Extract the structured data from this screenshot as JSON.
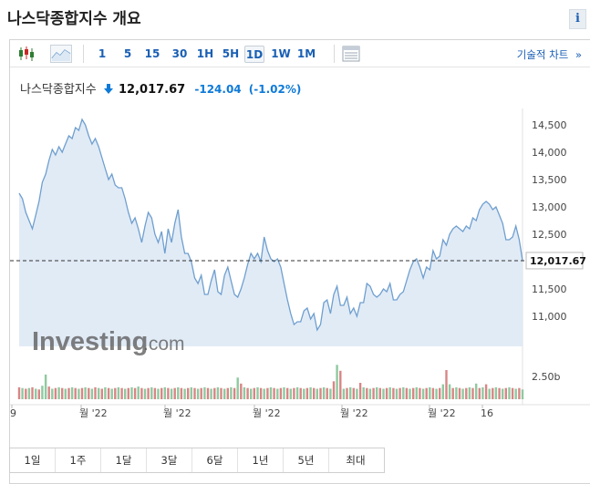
{
  "header": {
    "title": "나스닥종합지수 개요",
    "info_label": "i"
  },
  "toolbar": {
    "chart_types": [
      "candlestick-icon",
      "area-chart-icon"
    ],
    "periods": [
      "1",
      "5",
      "15",
      "30",
      "1H",
      "5H",
      "1D",
      "1W",
      "1M"
    ],
    "active_period": "1D",
    "table_icon": "table-icon",
    "technical_label": "기술적 차트",
    "technical_suffix": "»"
  },
  "quote": {
    "name": "나스닥종합지수",
    "direction_icon": "down-arrow-icon",
    "price": "12,017.67",
    "change": "-124.04",
    "change_pct": "(-1.02%)"
  },
  "colors": {
    "accent": "#1a5fb4",
    "down": "#0e7ad8",
    "area_fill": "#dce8f4",
    "line": "#6f9fcf",
    "vol_up": "#8fc9a0",
    "vol_down": "#d98585"
  },
  "watermark": {
    "brand": "Investing",
    "suffix": ".com"
  },
  "range_buttons": [
    "1일",
    "1주",
    "1달",
    "3달",
    "6달",
    "1년",
    "5년",
    "최대"
  ],
  "chart_data": {
    "type": "area",
    "title": "",
    "xlabel": "",
    "ylabel": "",
    "ylim": [
      10450,
      14800
    ],
    "y_ticks": [
      "14,500",
      "14,000",
      "13,500",
      "13,000",
      "12,500",
      "12,000",
      "11,500",
      "11,000"
    ],
    "x_tick_labels": [
      "9",
      "월 '22",
      "월 '22",
      "월 '22",
      "월 '22",
      "월 '22",
      "16"
    ],
    "current_label": "12,017.67",
    "current_value": 12017.67,
    "volume_tick": "2.50b",
    "grid": false,
    "series": [
      {
        "values": [
          13250,
          13150,
          12900,
          12750,
          12600,
          12850,
          13100,
          13450,
          13600,
          13850,
          14050,
          13950,
          14100,
          14000,
          14150,
          14300,
          14250,
          14450,
          14400,
          14600,
          14500,
          14300,
          14150,
          14250,
          14100,
          13900,
          13700,
          13500,
          13600,
          13400,
          13350,
          13350,
          13150,
          12900,
          12700,
          12800,
          12600,
          12350,
          12650,
          12900,
          12800,
          12500,
          12350,
          12550,
          12150,
          12600,
          12350,
          12700,
          12950,
          12450,
          12150,
          12150,
          12000,
          11700,
          11600,
          11750,
          11400,
          11400,
          11650,
          11850,
          11450,
          11400,
          11750,
          11900,
          11650,
          11400,
          11350,
          11500,
          11700,
          11950,
          12150,
          12050,
          12150,
          12000,
          12450,
          12200,
          12050,
          12000,
          12050,
          11900,
          11600,
          11300,
          11050,
          10850,
          10900,
          10900,
          11100,
          11150,
          10950,
          11050,
          10750,
          10850,
          11250,
          11300,
          11050,
          11400,
          11550,
          11200,
          11200,
          11350,
          11050,
          11150,
          11000,
          11250,
          11250,
          11600,
          11550,
          11400,
          11350,
          11400,
          11500,
          11450,
          11600,
          11300,
          11300,
          11400,
          11450,
          11650,
          11850,
          12000,
          12050,
          11900,
          11700,
          11900,
          11850,
          12200,
          12050,
          12100,
          12400,
          12300,
          12500,
          12600,
          12650,
          12600,
          12550,
          12650,
          12600,
          12800,
          12750,
          12950,
          13050,
          13100,
          13050,
          12950,
          13000,
          12850,
          12700,
          12400,
          12400,
          12450,
          12650,
          12400,
          12017.67
        ]
      }
    ],
    "volume": {
      "values": [
        1.6,
        1.5,
        1.4,
        1.5,
        1.6,
        1.4,
        1.3,
        1.8,
        1.5,
        1.7,
        1.4,
        1.5,
        1.6,
        1.5,
        1.4,
        1.5,
        1.6,
        1.5,
        1.4,
        1.5,
        1.6,
        1.5,
        1.4,
        1.6,
        1.5,
        1.4,
        1.6,
        1.5,
        1.4,
        1.5,
        1.6,
        1.5,
        1.4,
        1.5,
        1.6,
        1.5,
        1.7,
        1.5,
        1.4,
        1.5,
        1.6,
        1.5,
        1.4,
        1.5,
        1.6,
        1.5,
        1.4,
        1.5,
        1.6,
        1.5,
        1.4,
        1.5,
        1.6,
        1.5,
        1.4,
        1.5,
        1.6,
        1.5,
        1.4,
        1.5,
        1.6,
        1.5,
        1.4,
        1.5,
        1.6,
        1.5,
        1.4,
        1.5,
        1.6,
        1.5,
        1.4,
        1.5,
        1.6,
        1.5,
        1.4,
        1.5,
        1.6,
        1.5,
        1.4,
        1.5,
        1.6,
        1.5,
        1.4,
        1.5,
        1.6,
        1.5,
        1.4,
        1.5,
        1.6,
        1.5,
        1.4,
        1.5,
        1.6,
        1.5,
        1.4,
        1.5,
        1.6,
        1.5,
        1.4,
        1.5,
        1.6,
        1.5,
        1.4,
        1.5,
        1.6,
        1.5,
        1.4,
        1.5,
        1.6,
        1.5,
        1.4,
        1.5,
        1.6,
        1.5,
        1.4,
        1.5,
        1.6,
        1.5,
        1.4,
        1.5,
        1.6,
        1.5,
        1.4,
        1.5,
        1.6,
        1.5,
        1.4,
        1.5,
        1.6,
        1.5,
        1.4,
        1.5,
        1.6,
        1.5,
        1.4,
        1.5,
        1.6,
        1.5,
        1.4,
        1.5,
        1.6,
        1.5,
        1.4,
        1.5,
        1.6,
        1.5,
        1.4,
        1.5,
        1.6,
        1.5,
        1.4,
        1.5,
        1.3
      ],
      "spikes": {
        "8": 3.3,
        "66": 2.9,
        "67": 2.1,
        "95": 2.4,
        "96": 4.6,
        "97": 3.8,
        "103": 2.2,
        "128": 2.0,
        "129": 3.9,
        "130": 2.0,
        "138": 2.1,
        "141": 2.0
      },
      "down_indices": [
        0,
        2,
        4,
        6,
        9,
        11,
        13,
        15,
        17,
        19,
        21,
        23,
        25,
        27,
        29,
        31,
        33,
        35,
        37,
        39,
        41,
        43,
        45,
        47,
        49,
        51,
        53,
        55,
        57,
        59,
        61,
        63,
        65,
        67,
        69,
        71,
        73,
        75,
        77,
        79,
        81,
        83,
        85,
        87,
        89,
        91,
        93,
        95,
        97,
        99,
        101,
        103,
        105,
        107,
        109,
        111,
        113,
        115,
        117,
        119,
        121,
        123,
        125,
        127,
        129,
        131,
        133,
        135,
        137,
        139,
        141,
        143,
        145,
        147,
        149,
        151
      ]
    }
  }
}
